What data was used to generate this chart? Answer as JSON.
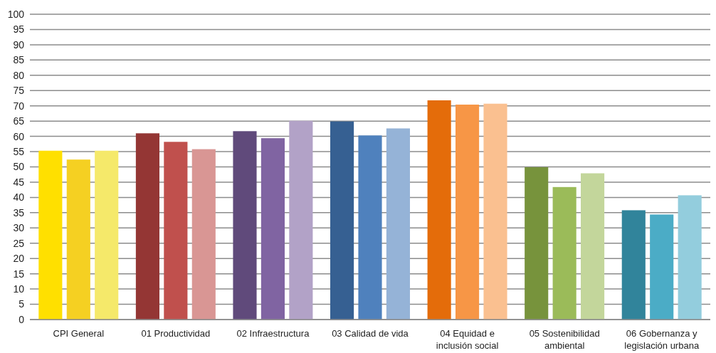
{
  "chart_data": {
    "type": "bar",
    "categories": [
      "CPI General",
      "01 Productividad",
      "02 Infraestructura",
      "03 Calidad  de vida",
      "04 Equidad  e inclusión social",
      "05 Sostenibilidad ambiental",
      "06 Gobernanza  y legislación urbana"
    ],
    "series": [
      {
        "values": [
          55.3,
          61,
          61.7,
          64.9,
          71.8,
          49.9,
          35.8
        ],
        "colors": [
          "#ffe000",
          "#943634",
          "#604a7b",
          "#366092",
          "#e46c0a",
          "#77933c",
          "#31849b"
        ]
      },
      {
        "values": [
          52.4,
          58.2,
          59.4,
          60.3,
          70.4,
          43.4,
          34.4
        ],
        "colors": [
          "#f5d022",
          "#c0504d",
          "#8064a2",
          "#4f81bd",
          "#f79646",
          "#9bbb59",
          "#4bacc6"
        ]
      },
      {
        "values": [
          55.3,
          55.8,
          65.1,
          62.6,
          70.7,
          47.9,
          40.7
        ],
        "colors": [
          "#f5e96a",
          "#d99694",
          "#b2a2c7",
          "#95b3d7",
          "#fac090",
          "#c3d69b",
          "#93cddd"
        ]
      }
    ],
    "ylim": [
      0,
      100
    ],
    "yticks": [
      0,
      5,
      10,
      15,
      20,
      25,
      30,
      35,
      40,
      45,
      50,
      55,
      60,
      65,
      70,
      75,
      80,
      85,
      90,
      95,
      100
    ],
    "grid": "y"
  }
}
